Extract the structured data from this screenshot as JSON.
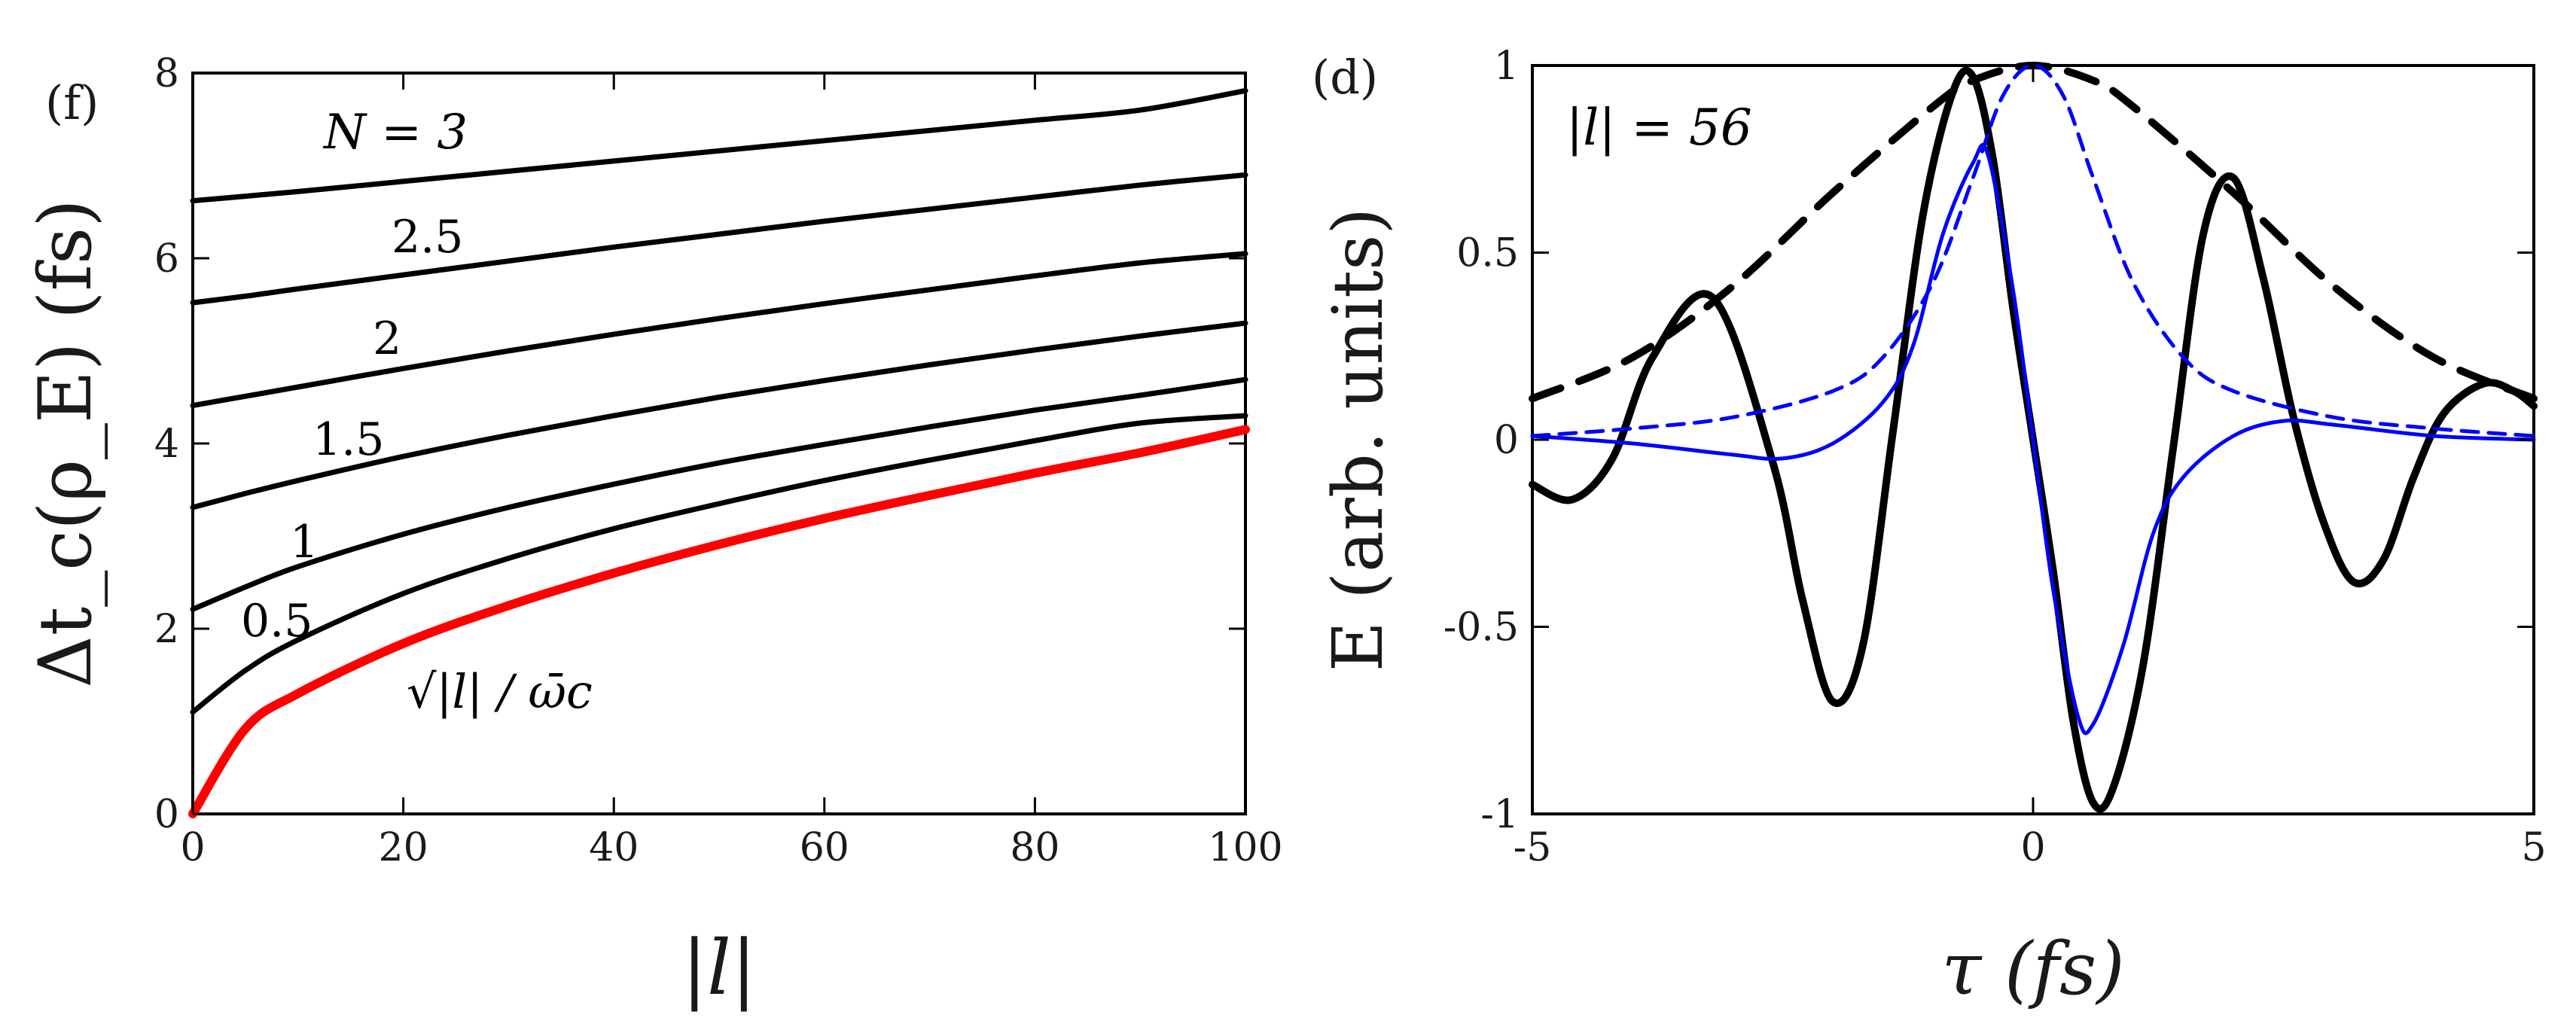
{
  "chart_data": [
    {
      "type": "line",
      "panel_label": "(f)",
      "xlabel": "|l|",
      "ylabel": "Δt_c(ρ_E) (fs)",
      "xlim": [
        0,
        100
      ],
      "ylim": [
        0,
        8
      ],
      "xticks": [
        "0",
        "20",
        "40",
        "60",
        "80",
        "100"
      ],
      "yticks": [
        "0",
        "2",
        "4",
        "6",
        "8"
      ],
      "grid": false,
      "x": [
        0,
        5,
        10,
        20,
        30,
        40,
        50,
        60,
        70,
        80,
        90,
        100
      ],
      "series": [
        {
          "name": "N = 3",
          "label": "N = 3",
          "color": "#000000",
          "values": [
            6.62,
            6.67,
            6.72,
            6.83,
            6.94,
            7.05,
            7.16,
            7.27,
            7.38,
            7.49,
            7.6,
            7.81
          ]
        },
        {
          "name": "N = 2.5",
          "label": "2.5",
          "color": "#000000",
          "values": [
            5.52,
            5.59,
            5.67,
            5.82,
            5.97,
            6.12,
            6.26,
            6.4,
            6.53,
            6.66,
            6.79,
            6.9
          ]
        },
        {
          "name": "N = 2",
          "label": "2",
          "color": "#000000",
          "values": [
            4.41,
            4.51,
            4.61,
            4.81,
            5.0,
            5.18,
            5.35,
            5.51,
            5.66,
            5.81,
            5.95,
            6.05
          ]
        },
        {
          "name": "N = 1.5",
          "label": "1.5",
          "color": "#000000",
          "values": [
            3.31,
            3.46,
            3.6,
            3.86,
            4.09,
            4.3,
            4.5,
            4.68,
            4.85,
            5.01,
            5.16,
            5.3
          ]
        },
        {
          "name": "N = 1",
          "label": "1",
          "color": "#000000",
          "values": [
            2.21,
            2.45,
            2.67,
            3.02,
            3.31,
            3.56,
            3.79,
            3.99,
            4.18,
            4.36,
            4.52,
            4.69
          ]
        },
        {
          "name": "N = 0.5",
          "label": "0.5",
          "color": "#000000",
          "values": [
            1.1,
            1.55,
            1.88,
            2.38,
            2.76,
            3.08,
            3.35,
            3.6,
            3.82,
            4.03,
            4.22,
            4.3
          ]
        },
        {
          "name": "sqrt(|l|)/omega_c",
          "label": "√|l| / ω̄c",
          "color": "#ff0000",
          "values": [
            0.0,
            0.92,
            1.3,
            1.84,
            2.25,
            2.6,
            2.91,
            3.19,
            3.44,
            3.68,
            3.9,
            4.15
          ]
        }
      ]
    },
    {
      "type": "line",
      "panel_label": "(d)",
      "annotation": "|l| = 56",
      "xlabel": "τ (fs)",
      "ylabel": "E (arb. units)",
      "xlim": [
        -5,
        5
      ],
      "ylim": [
        -1,
        1
      ],
      "xticks": [
        "-5",
        "0",
        "5"
      ],
      "yticks": [
        "-1",
        "-0.5",
        "0",
        "0.5",
        "1"
      ],
      "grid": false,
      "series": [
        {
          "name": "field-black",
          "color": "#000000",
          "style": "solid",
          "x": [
            -5.0,
            -4.6,
            -4.2,
            -3.8,
            -3.2,
            -2.6,
            -2.3,
            -2.0,
            -1.7,
            -1.4,
            -1.1,
            -0.8,
            -0.6,
            -0.4,
            -0.2,
            0.0,
            0.2,
            0.4,
            0.6,
            0.8,
            1.1,
            1.4,
            1.7,
            2.0,
            2.3,
            2.6,
            2.9,
            3.2,
            3.5,
            3.8,
            4.1,
            4.5,
            4.8,
            5.0
          ],
          "values": [
            -0.12,
            -0.16,
            -0.05,
            0.22,
            0.38,
            -0.06,
            -0.43,
            -0.7,
            -0.55,
            0.02,
            0.6,
            0.93,
            0.97,
            0.75,
            0.35,
            0.0,
            -0.35,
            -0.75,
            -0.97,
            -0.93,
            -0.6,
            -0.02,
            0.55,
            0.7,
            0.43,
            0.06,
            -0.22,
            -0.38,
            -0.32,
            -0.1,
            0.07,
            0.15,
            0.13,
            0.09
          ]
        },
        {
          "name": "envelope-black",
          "color": "#000000",
          "style": "dashed",
          "x": [
            -5.0,
            -4.0,
            -3.0,
            -2.0,
            -1.0,
            -0.6,
            0.0,
            0.6,
            1.0,
            2.0,
            3.0,
            4.0,
            5.0
          ],
          "values": [
            0.11,
            0.22,
            0.41,
            0.66,
            0.89,
            0.96,
            1.0,
            0.96,
            0.89,
            0.66,
            0.41,
            0.22,
            0.11
          ]
        },
        {
          "name": "field-blue",
          "color": "#0000ff",
          "style": "solid",
          "x": [
            -5.0,
            -4.0,
            -3.0,
            -2.5,
            -2.0,
            -1.5,
            -1.2,
            -0.9,
            -0.6,
            -0.45,
            -0.2,
            0.0,
            0.2,
            0.45,
            0.6,
            0.9,
            1.2,
            1.5,
            2.0,
            2.5,
            3.0,
            4.0,
            5.0
          ],
          "values": [
            0.01,
            -0.01,
            -0.04,
            -0.05,
            -0.01,
            0.1,
            0.25,
            0.55,
            0.74,
            0.76,
            0.4,
            0.0,
            -0.4,
            -0.74,
            -0.76,
            -0.55,
            -0.25,
            -0.1,
            0.01,
            0.05,
            0.04,
            0.01,
            0.0
          ]
        },
        {
          "name": "envelope-blue",
          "color": "#0000ff",
          "style": "dashed",
          "x": [
            -5.0,
            -4.0,
            -3.0,
            -2.0,
            -1.5,
            -1.0,
            -0.6,
            -0.3,
            0.0,
            0.3,
            0.6,
            1.0,
            1.5,
            2.0,
            3.0,
            4.0,
            5.0
          ],
          "values": [
            0.01,
            0.03,
            0.06,
            0.13,
            0.22,
            0.42,
            0.7,
            0.92,
            1.0,
            0.92,
            0.7,
            0.42,
            0.22,
            0.13,
            0.06,
            0.03,
            0.01
          ]
        }
      ]
    }
  ]
}
